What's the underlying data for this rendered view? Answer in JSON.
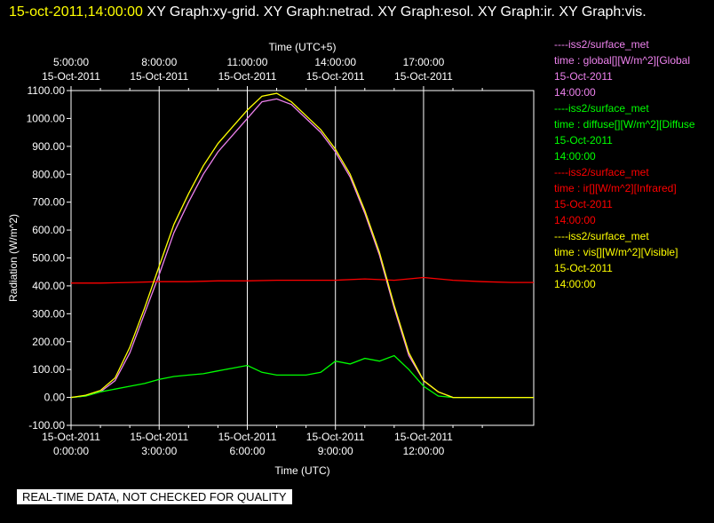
{
  "header": {
    "timestamp": "15-oct-2011,14:00:00",
    "graphs": "XY Graph:xy-grid.  XY Graph:netrad.  XY Graph:esol.  XY Graph:ir.  XY Graph:vis."
  },
  "legend": [
    {
      "source": "----iss2/surface_met",
      "desc": "time : global[][W/m^2][Global",
      "date": "15-Oct-2011",
      "time": "14:00:00",
      "color": "#ee82ee"
    },
    {
      "source": "----iss2/surface_met",
      "desc": "time : diffuse[][W/m^2][Diffuse",
      "date": "15-Oct-2011",
      "time": "14:00:00",
      "color": "#00ff00"
    },
    {
      "source": "----iss2/surface_met",
      "desc": "time : ir[][W/m^2][Infrared]",
      "date": "15-Oct-2011",
      "time": "14:00:00",
      "color": "#ff0000"
    },
    {
      "source": "----iss2/surface_met",
      "desc": "time : vis[][W/m^2][Visible]",
      "date": "15-Oct-2011",
      "time": "14:00:00",
      "color": "#ffff00"
    }
  ],
  "note": "REAL-TIME DATA, NOT CHECKED FOR QUALITY",
  "chart_data": {
    "type": "line",
    "ylabel": "Radiation (W/m^2)",
    "xlabel_bottom": "Time (UTC)",
    "xlabel_top": "Time (UTC+5)",
    "ylim": [
      -100,
      1100
    ],
    "xlim": [
      "15-Oct-2011 00:00",
      "15-Oct-2011 15:45"
    ],
    "grid": true,
    "y_ticks": [
      "-100.00",
      "0.00",
      "100.00",
      "200.00",
      "300.00",
      "400.00",
      "500.00",
      "600.00",
      "700.00",
      "800.00",
      "900.00",
      "1000.00",
      "1100.00"
    ],
    "x_ticks_bottom": [
      {
        "date": "15-Oct-2011",
        "time": "0:00:00"
      },
      {
        "date": "15-Oct-2011",
        "time": "3:00:00"
      },
      {
        "date": "15-Oct-2011",
        "time": "6:00:00"
      },
      {
        "date": "15-Oct-2011",
        "time": "9:00:00"
      },
      {
        "date": "15-Oct-2011",
        "time": "12:00:00"
      }
    ],
    "x_ticks_top": [
      {
        "time": "5:00:00",
        "date": "15-Oct-2011"
      },
      {
        "time": "8:00:00",
        "date": "15-Oct-2011"
      },
      {
        "time": "11:00:00",
        "date": "15-Oct-2011"
      },
      {
        "time": "14:00:00",
        "date": "15-Oct-2011"
      },
      {
        "time": "17:00:00",
        "date": "15-Oct-2011"
      }
    ],
    "series": [
      {
        "name": "global",
        "color": "#ee82ee",
        "x": [
          "00:00",
          "00:30",
          "01:00",
          "01:30",
          "02:00",
          "02:30",
          "03:00",
          "03:30",
          "04:00",
          "04:30",
          "05:00",
          "05:30",
          "06:00",
          "06:30",
          "07:00",
          "07:30",
          "08:00",
          "08:30",
          "09:00",
          "09:30",
          "10:00",
          "10:30",
          "11:00",
          "11:30",
          "12:00",
          "12:30",
          "13:00",
          "13:30",
          "14:00",
          "14:30",
          "15:00",
          "15:45"
        ],
        "y": [
          0,
          5,
          20,
          60,
          160,
          300,
          440,
          590,
          700,
          800,
          880,
          940,
          1000,
          1060,
          1070,
          1050,
          1000,
          950,
          880,
          790,
          660,
          510,
          320,
          150,
          60,
          20,
          0,
          0,
          0,
          0,
          0,
          0
        ]
      },
      {
        "name": "diffuse",
        "color": "#00ff00",
        "x": [
          "00:00",
          "00:30",
          "01:00",
          "01:30",
          "02:00",
          "02:30",
          "03:00",
          "03:30",
          "04:00",
          "04:30",
          "05:00",
          "05:30",
          "06:00",
          "06:30",
          "07:00",
          "07:30",
          "08:00",
          "08:30",
          "09:00",
          "09:30",
          "10:00",
          "10:30",
          "11:00",
          "11:30",
          "12:00",
          "12:30",
          "13:00",
          "13:30",
          "14:00",
          "14:30",
          "15:00",
          "15:45"
        ],
        "y": [
          0,
          5,
          20,
          30,
          40,
          50,
          65,
          75,
          80,
          85,
          95,
          105,
          115,
          90,
          80,
          80,
          80,
          90,
          130,
          120,
          140,
          130,
          150,
          100,
          40,
          5,
          0,
          0,
          0,
          0,
          0,
          0
        ]
      },
      {
        "name": "ir",
        "color": "#ff0000",
        "x": [
          "00:00",
          "01:00",
          "02:00",
          "03:00",
          "04:00",
          "05:00",
          "06:00",
          "07:00",
          "08:00",
          "09:00",
          "10:00",
          "11:00",
          "12:00",
          "13:00",
          "14:00",
          "15:00",
          "15:45"
        ],
        "y": [
          410,
          410,
          412,
          415,
          415,
          418,
          418,
          420,
          420,
          420,
          425,
          420,
          430,
          420,
          415,
          412,
          412
        ]
      },
      {
        "name": "vis",
        "color": "#ffff00",
        "x": [
          "00:00",
          "00:30",
          "01:00",
          "01:30",
          "02:00",
          "02:30",
          "03:00",
          "03:30",
          "04:00",
          "04:30",
          "05:00",
          "05:30",
          "06:00",
          "06:30",
          "07:00",
          "07:30",
          "08:00",
          "08:30",
          "09:00",
          "09:30",
          "10:00",
          "10:30",
          "11:00",
          "11:30",
          "12:00",
          "12:30",
          "13:00",
          "13:30",
          "14:00",
          "14:30",
          "15:00",
          "15:45"
        ],
        "y": [
          0,
          8,
          25,
          70,
          180,
          320,
          470,
          620,
          730,
          830,
          910,
          970,
          1030,
          1080,
          1090,
          1060,
          1010,
          960,
          890,
          800,
          670,
          520,
          330,
          160,
          60,
          20,
          0,
          0,
          0,
          0,
          0,
          0
        ]
      }
    ]
  }
}
